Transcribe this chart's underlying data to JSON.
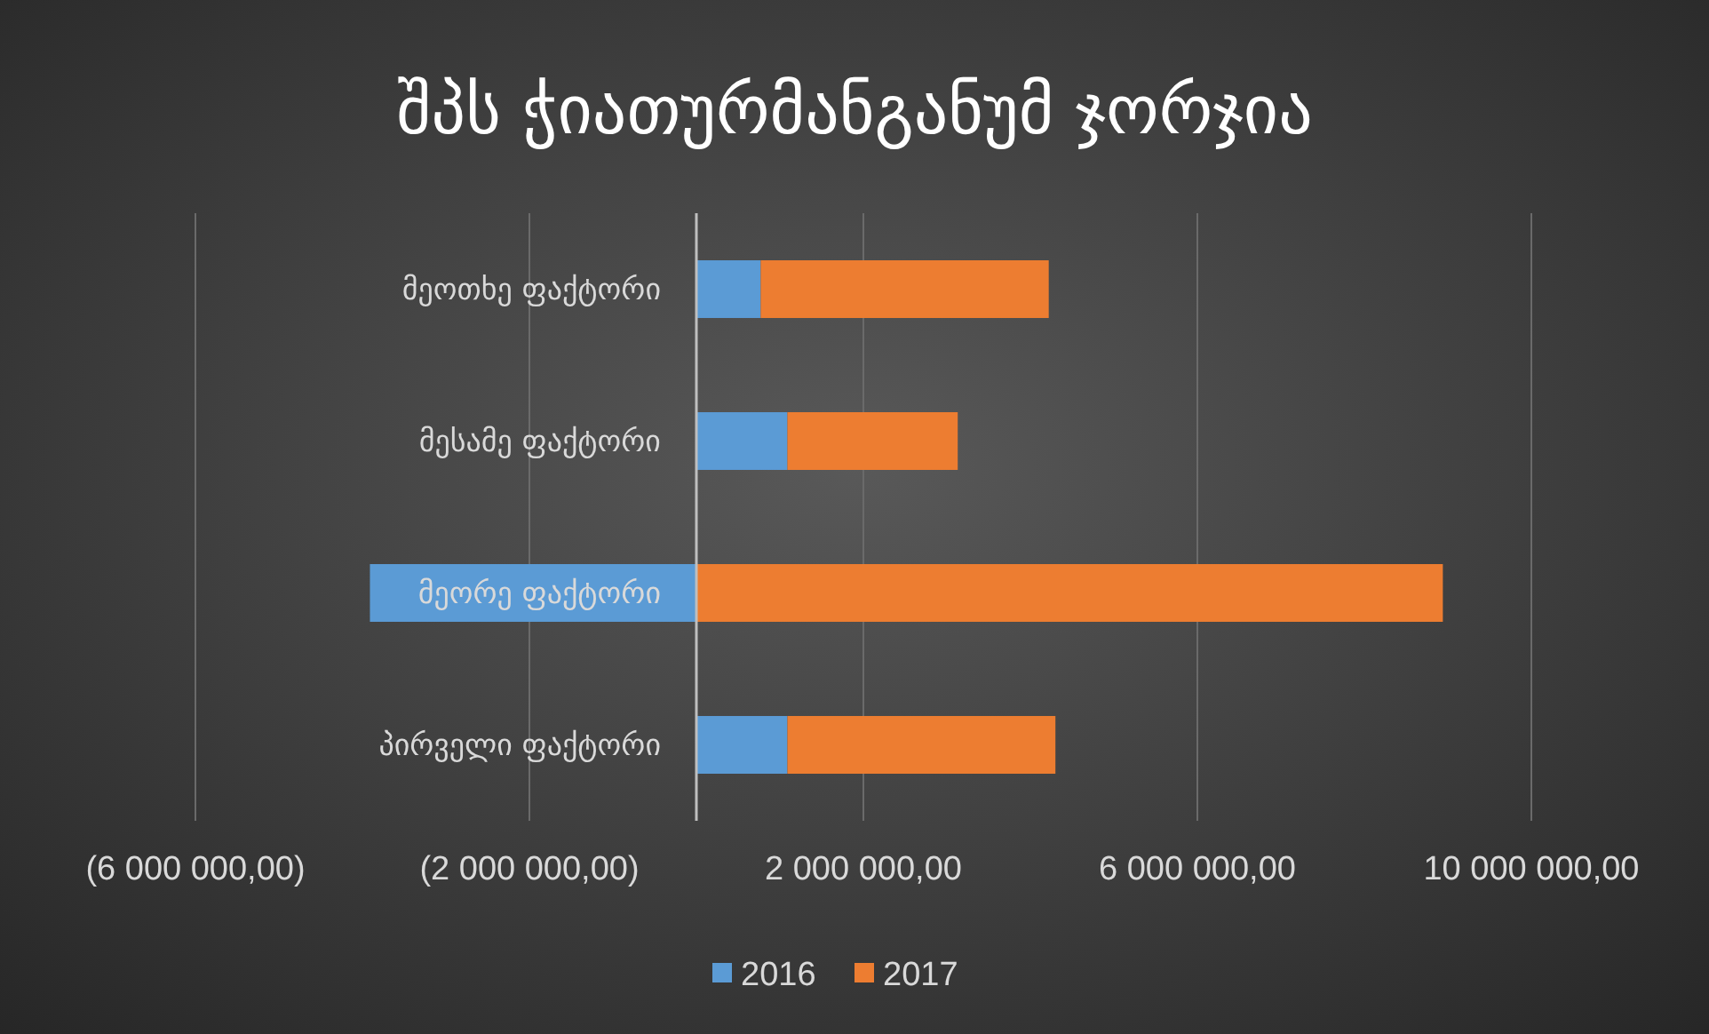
{
  "chart_data": {
    "type": "bar",
    "orientation": "horizontal",
    "stacked": true,
    "title": "შპს ჭიათურმანგანუმ ჯორჯია",
    "categories": [
      "მეოთხე ფაქტორი",
      "მესამე ფაქტორი",
      "მეორე ფაქტორი",
      "პირველი ფაქტორი"
    ],
    "series": [
      {
        "name": "2016",
        "color": "#5b9bd5",
        "values": [
          770000,
          1090000,
          -3910000,
          1090000
        ]
      },
      {
        "name": "2017",
        "color": "#ed7d31",
        "values": [
          3450000,
          2040000,
          8940000,
          3210000
        ]
      }
    ],
    "xlim": [
      -6000000,
      10000000
    ],
    "xticks": [
      {
        "value": -6000000,
        "label": "(6 000 000,00)"
      },
      {
        "value": -2000000,
        "label": "(2 000 000,00)"
      },
      {
        "value": 2000000,
        "label": "2 000 000,00"
      },
      {
        "value": 6000000,
        "label": "6 000 000,00"
      },
      {
        "value": 10000000,
        "label": "10 000 000,00"
      }
    ],
    "grid": "x",
    "legend": "bottom"
  }
}
